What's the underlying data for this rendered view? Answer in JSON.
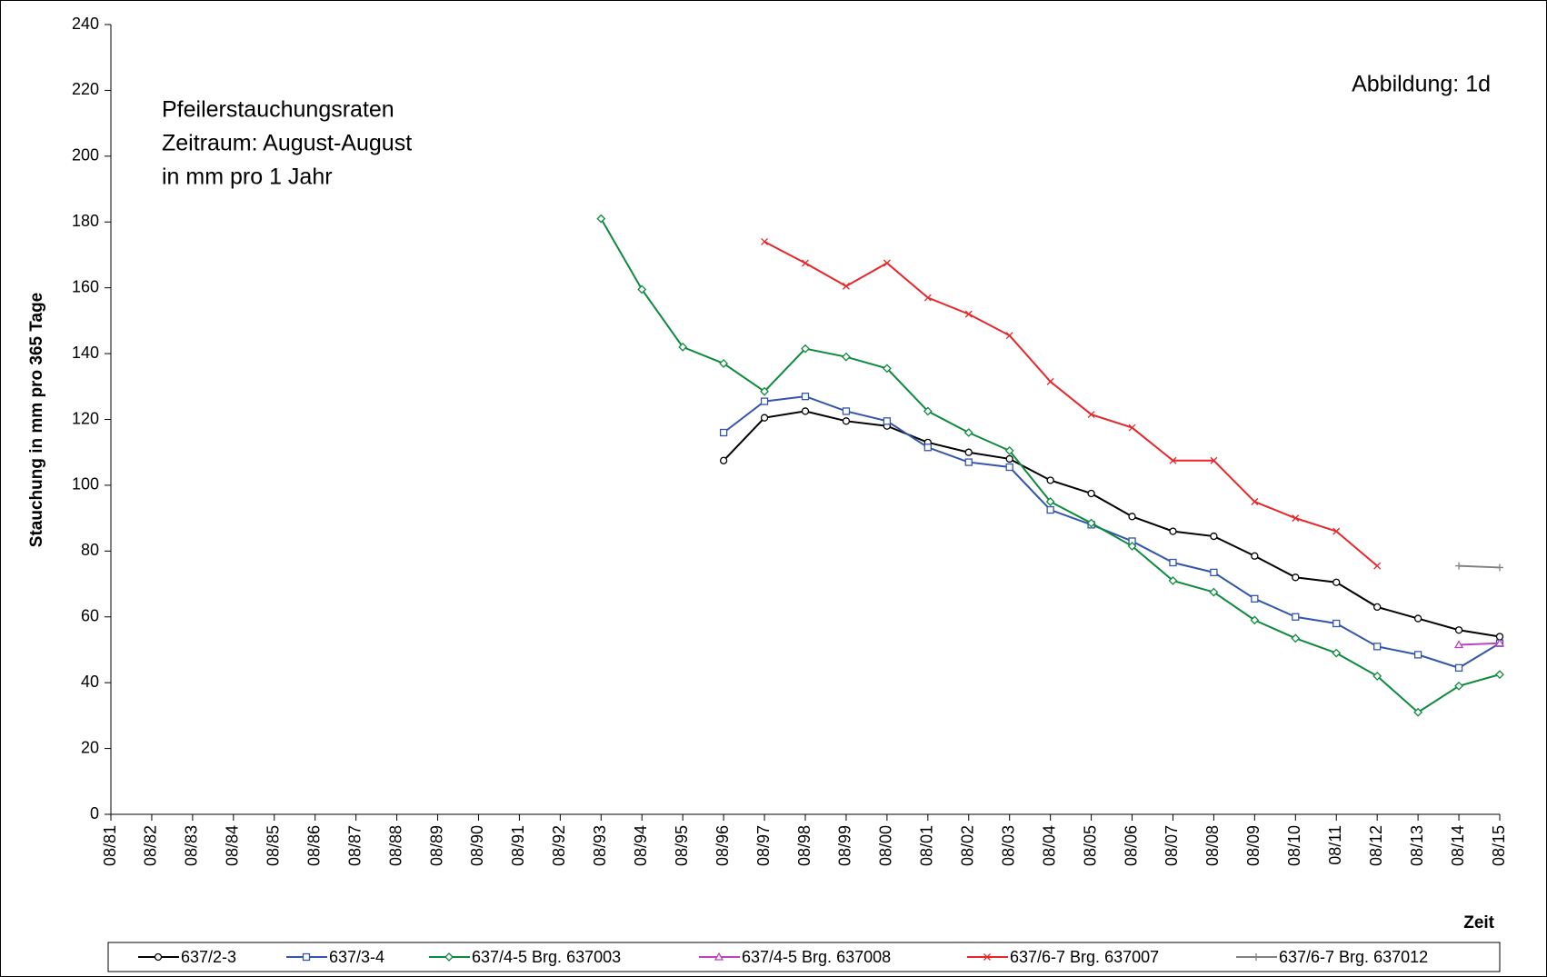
{
  "chart_data": {
    "type": "line",
    "annotations": [
      "Pfeilerstauchungsraten",
      "Zeitraum: August-August",
      "in mm pro 1 Jahr"
    ],
    "figure_label": "Abbildung:  1d",
    "y_label": "Stauchung in mm pro 365 Tage",
    "x_label": "Zeit",
    "categories": [
      "08/81",
      "08/82",
      "08/83",
      "08/84",
      "08/85",
      "08/86",
      "08/87",
      "08/88",
      "08/89",
      "08/90",
      "08/91",
      "08/92",
      "08/93",
      "08/94",
      "08/95",
      "08/96",
      "08/97",
      "08/98",
      "08/99",
      "08/00",
      "08/01",
      "08/02",
      "08/03",
      "08/04",
      "08/05",
      "08/06",
      "08/07",
      "08/08",
      "08/09",
      "08/10",
      "08/11",
      "08/12",
      "08/13",
      "08/14",
      "08/15"
    ],
    "ylim": [
      0,
      240
    ],
    "yticks": [
      0,
      20,
      40,
      60,
      80,
      100,
      120,
      140,
      160,
      180,
      200,
      220,
      240
    ],
    "series": [
      {
        "name": "637/2-3",
        "color": "#000000",
        "marker": "circle",
        "values": [
          null,
          null,
          null,
          null,
          null,
          null,
          null,
          null,
          null,
          null,
          null,
          null,
          null,
          null,
          null,
          107.5,
          120.5,
          122.5,
          119.5,
          118,
          113,
          110,
          108,
          101.5,
          97.5,
          90.5,
          86,
          84.5,
          78.5,
          72,
          70.5,
          63,
          59.5,
          56,
          54
        ]
      },
      {
        "name": "637/3-4",
        "color": "#3355aa",
        "marker": "square",
        "values": [
          null,
          null,
          null,
          null,
          null,
          null,
          null,
          null,
          null,
          null,
          null,
          null,
          null,
          null,
          null,
          116,
          125.5,
          127,
          122.5,
          119.5,
          111.5,
          107,
          105.5,
          92.5,
          88,
          83,
          76.5,
          73.5,
          65.5,
          60,
          58,
          51,
          48.5,
          44.5,
          52
        ]
      },
      {
        "name": "637/4-5 Brg. 637003",
        "color": "#0e8a3e",
        "marker": "diamond",
        "values": [
          null,
          null,
          null,
          null,
          null,
          null,
          null,
          null,
          null,
          null,
          null,
          null,
          181,
          159.5,
          142,
          137,
          128.5,
          141.5,
          139,
          135.5,
          122.5,
          116,
          110.5,
          95,
          88.5,
          81.5,
          71,
          67.5,
          59,
          53.5,
          49,
          42,
          31,
          39,
          42.5
        ]
      },
      {
        "name": "637/4-5 Brg. 637008",
        "color": "#c040c0",
        "marker": "triangle",
        "values": [
          null,
          null,
          null,
          null,
          null,
          null,
          null,
          null,
          null,
          null,
          null,
          null,
          null,
          null,
          null,
          null,
          null,
          null,
          null,
          null,
          null,
          null,
          null,
          null,
          null,
          null,
          null,
          null,
          null,
          null,
          null,
          null,
          null,
          51.5,
          52
        ]
      },
      {
        "name": "637/6-7 Brg. 637007",
        "color": "#e8262a",
        "marker": "x",
        "values": [
          null,
          null,
          null,
          null,
          null,
          null,
          null,
          null,
          null,
          null,
          null,
          null,
          null,
          null,
          null,
          null,
          174,
          167.5,
          160.5,
          167.5,
          157,
          152,
          145.5,
          131.5,
          121.5,
          117.5,
          107.5,
          107.5,
          95,
          90,
          86,
          75.5,
          null,
          null,
          null
        ]
      },
      {
        "name": "637/6-7 Brg. 637012",
        "color": "#808080",
        "marker": "plus",
        "values": [
          null,
          null,
          null,
          null,
          null,
          null,
          null,
          null,
          null,
          null,
          null,
          null,
          null,
          null,
          null,
          null,
          null,
          null,
          null,
          null,
          null,
          null,
          null,
          null,
          null,
          null,
          null,
          null,
          null,
          null,
          null,
          null,
          null,
          75.5,
          75
        ]
      }
    ]
  }
}
